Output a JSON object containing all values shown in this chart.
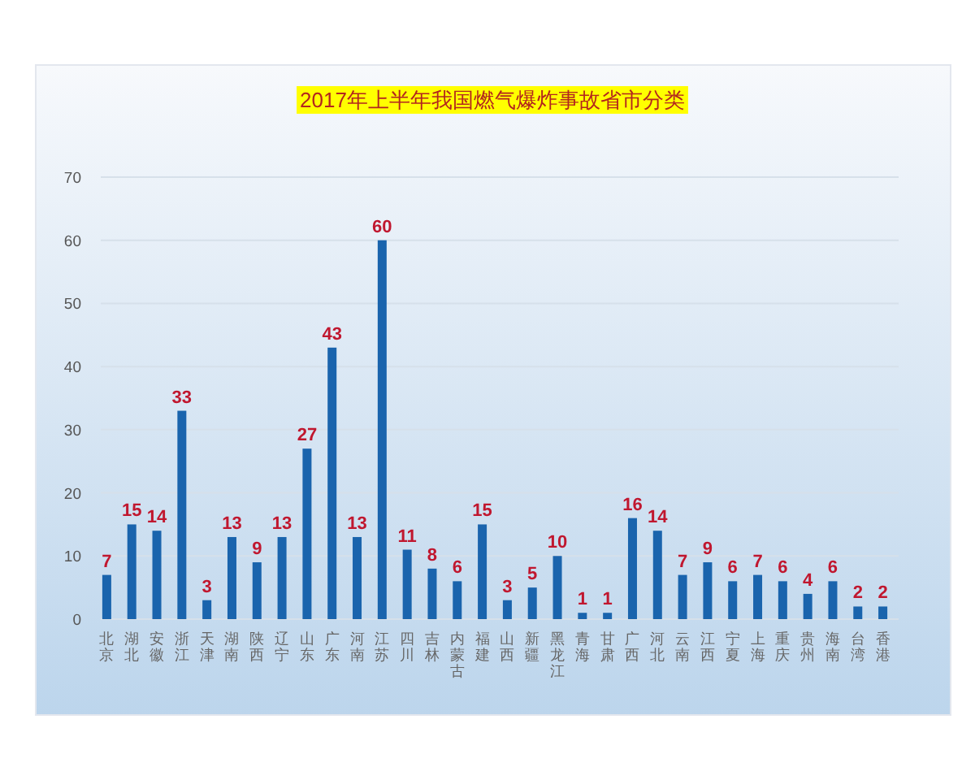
{
  "chart_data": {
    "type": "bar",
    "title": "2017年上半年我国燃气爆炸事故省市分类",
    "categories": [
      "北京",
      "湖北",
      "安徽",
      "浙江",
      "天津",
      "湖南",
      "陕西",
      "辽宁",
      "山东",
      "广东",
      "河南",
      "江苏",
      "四川",
      "吉林",
      "内蒙古",
      "福建",
      "山西",
      "新疆",
      "黑龙江",
      "青海",
      "甘肃",
      "广西",
      "河北",
      "云南",
      "江西",
      "宁夏",
      "上海",
      "重庆",
      "贵州",
      "海南",
      "台湾",
      "香港"
    ],
    "values": [
      7,
      15,
      14,
      33,
      3,
      13,
      9,
      13,
      27,
      43,
      13,
      60,
      11,
      8,
      6,
      15,
      3,
      5,
      10,
      1,
      1,
      16,
      14,
      7,
      9,
      6,
      7,
      6,
      4,
      6,
      2,
      2
    ],
    "color": "#1a64ad",
    "ylim": [
      0,
      70
    ],
    "yticks": [
      0,
      10,
      20,
      30,
      40,
      50,
      60,
      70
    ],
    "grid": "y",
    "data_labels": true
  }
}
